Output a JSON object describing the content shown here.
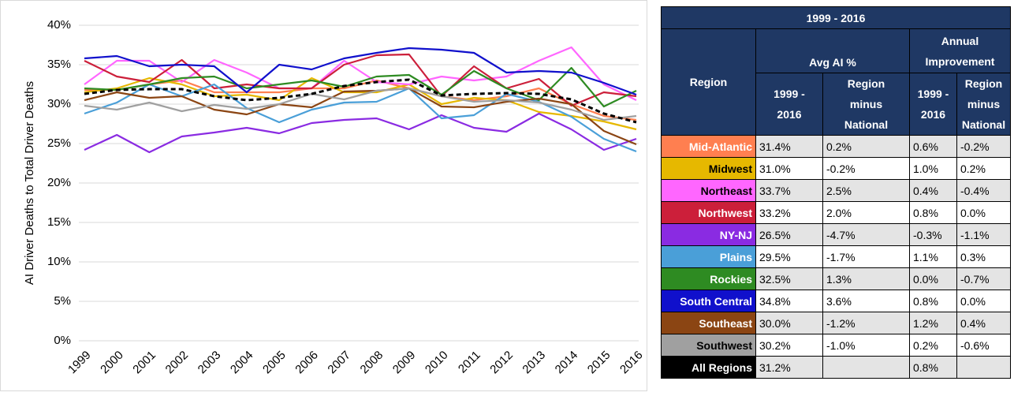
{
  "chart_data": {
    "type": "line",
    "y_label": "AI Driver Deaths to Total Driver Deaths",
    "categories": [
      "1999",
      "2000",
      "2001",
      "2002",
      "2003",
      "2004",
      "2005",
      "2006",
      "2007",
      "2008",
      "2009",
      "2010",
      "2011",
      "2012",
      "2013",
      "2014",
      "2015",
      "2016"
    ],
    "ylim": [
      0,
      40
    ],
    "yticks": [
      {
        "value": 0,
        "label": "0%"
      },
      {
        "value": 5,
        "label": "5%"
      },
      {
        "value": 10,
        "label": "10%"
      },
      {
        "value": 15,
        "label": "15%"
      },
      {
        "value": 20,
        "label": "20%"
      },
      {
        "value": 25,
        "label": "25%"
      },
      {
        "value": 30,
        "label": "30%"
      },
      {
        "value": 35,
        "label": "35%"
      },
      {
        "value": 40,
        "label": "40%"
      }
    ],
    "grid": true,
    "series": [
      {
        "color": "#ff7f50",
        "values": [
          31.8,
          31.8,
          32.5,
          33.0,
          31.5,
          31.5,
          31.5,
          32.0,
          32.0,
          33.0,
          32.0,
          31.0,
          30.5,
          31.0,
          32.0,
          30.0,
          28.5,
          28.0
        ]
      },
      {
        "color": "#e6b800",
        "values": [
          31.5,
          32.0,
          33.3,
          32.5,
          31.0,
          31.2,
          30.5,
          33.3,
          31.5,
          31.5,
          32.5,
          30.0,
          30.8,
          30.5,
          29.0,
          28.5,
          27.8,
          26.8
        ]
      },
      {
        "color": "#ff66ff",
        "values": [
          32.5,
          35.5,
          35.5,
          32.8,
          35.6,
          34.0,
          32.0,
          32.0,
          35.5,
          32.8,
          32.5,
          33.5,
          33.0,
          33.5,
          35.5,
          37.2,
          32.5,
          30.5
        ]
      },
      {
        "color": "#cc1f3a",
        "values": [
          35.5,
          33.5,
          32.8,
          35.6,
          32.0,
          32.5,
          32.0,
          32.0,
          35.0,
          36.2,
          36.3,
          31.0,
          34.8,
          32.0,
          33.2,
          29.8,
          31.5,
          31.0
        ]
      },
      {
        "color": "#8a2be2",
        "values": [
          24.2,
          26.1,
          23.9,
          25.9,
          26.4,
          27.0,
          26.3,
          27.6,
          28.0,
          28.2,
          26.8,
          28.6,
          27.0,
          26.5,
          28.8,
          26.8,
          24.2,
          25.6
        ]
      },
      {
        "color": "#4a9fd8",
        "values": [
          28.8,
          30.2,
          32.5,
          31.0,
          32.5,
          29.5,
          27.7,
          29.3,
          30.2,
          30.3,
          32.0,
          28.2,
          28.6,
          31.3,
          30.3,
          28.4,
          25.6,
          24.0
        ]
      },
      {
        "color": "#2e8b22",
        "values": [
          32.0,
          31.8,
          32.5,
          33.3,
          33.5,
          32.0,
          32.5,
          33.0,
          32.2,
          33.5,
          33.7,
          31.2,
          34.2,
          32.0,
          30.5,
          34.6,
          29.7,
          31.7
        ]
      },
      {
        "color": "#1010cc",
        "values": [
          35.8,
          36.1,
          34.8,
          35.0,
          34.8,
          31.5,
          35.0,
          34.4,
          35.8,
          36.5,
          37.1,
          36.9,
          36.5,
          34.0,
          34.2,
          34.0,
          32.7,
          31.2
        ]
      },
      {
        "color": "#8b4513",
        "values": [
          30.5,
          31.5,
          30.8,
          31.0,
          29.3,
          28.7,
          30.0,
          29.6,
          31.6,
          31.7,
          32.0,
          29.7,
          29.6,
          30.3,
          30.7,
          30.0,
          26.6,
          24.9
        ]
      },
      {
        "color": "#a0a0a0",
        "values": [
          29.8,
          29.3,
          30.2,
          29.1,
          29.9,
          29.4,
          30.0,
          31.3,
          30.6,
          31.7,
          32.0,
          31.0,
          30.3,
          30.5,
          30.2,
          29.3,
          28.0,
          28.5
        ]
      },
      {
        "color": "#000000",
        "dashed": true,
        "values": [
          31.3,
          31.8,
          31.9,
          31.9,
          31.0,
          30.5,
          30.8,
          31.3,
          32.3,
          32.8,
          33.1,
          31.1,
          31.3,
          31.4,
          31.3,
          30.6,
          28.8,
          27.7
        ]
      }
    ]
  },
  "table": {
    "title": "1999 - 2016",
    "region_header": "Region",
    "avg_header": "Avg AI %",
    "annual_header": "Annual Improvement",
    "sub_headers": [
      "1999 - 2016",
      "Region minus National",
      "1999 - 2016",
      "Region minus National"
    ],
    "rows": [
      {
        "region": "Mid-Atlantic",
        "color": "#ff7f50",
        "text_color": "#ffffff",
        "cells": [
          "31.4%",
          "0.2%",
          "0.6%",
          "-0.2%"
        ]
      },
      {
        "region": "Midwest",
        "color": "#e6b800",
        "text_color": "#000000",
        "cells": [
          "31.0%",
          "-0.2%",
          "1.0%",
          "0.2%"
        ]
      },
      {
        "region": "Northeast",
        "color": "#ff66ff",
        "text_color": "#000000",
        "cells": [
          "33.7%",
          "2.5%",
          "0.4%",
          "-0.4%"
        ]
      },
      {
        "region": "Northwest",
        "color": "#cc1f3a",
        "text_color": "#ffffff",
        "cells": [
          "33.2%",
          "2.0%",
          "0.8%",
          "0.0%"
        ]
      },
      {
        "region": "NY-NJ",
        "color": "#8a2be2",
        "text_color": "#ffffff",
        "cells": [
          "26.5%",
          "-4.7%",
          "-0.3%",
          "-1.1%"
        ]
      },
      {
        "region": "Plains",
        "color": "#4a9fd8",
        "text_color": "#ffffff",
        "cells": [
          "29.5%",
          "-1.7%",
          "1.1%",
          "0.3%"
        ]
      },
      {
        "region": "Rockies",
        "color": "#2e8b22",
        "text_color": "#ffffff",
        "cells": [
          "32.5%",
          "1.3%",
          "0.0%",
          "-0.7%"
        ]
      },
      {
        "region": "South Central",
        "color": "#1010cc",
        "text_color": "#ffffff",
        "cells": [
          "34.8%",
          "3.6%",
          "0.8%",
          "0.0%"
        ]
      },
      {
        "region": "Southeast",
        "color": "#8b4513",
        "text_color": "#ffffff",
        "cells": [
          "30.0%",
          "-1.2%",
          "1.2%",
          "0.4%"
        ]
      },
      {
        "region": "Southwest",
        "color": "#a0a0a0",
        "text_color": "#000000",
        "cells": [
          "30.2%",
          "-1.0%",
          "0.2%",
          "-0.6%"
        ]
      },
      {
        "region": "All Regions",
        "color": "#000000",
        "text_color": "#ffffff",
        "cells": [
          "31.2%",
          null,
          "0.8%",
          null
        ]
      }
    ]
  }
}
